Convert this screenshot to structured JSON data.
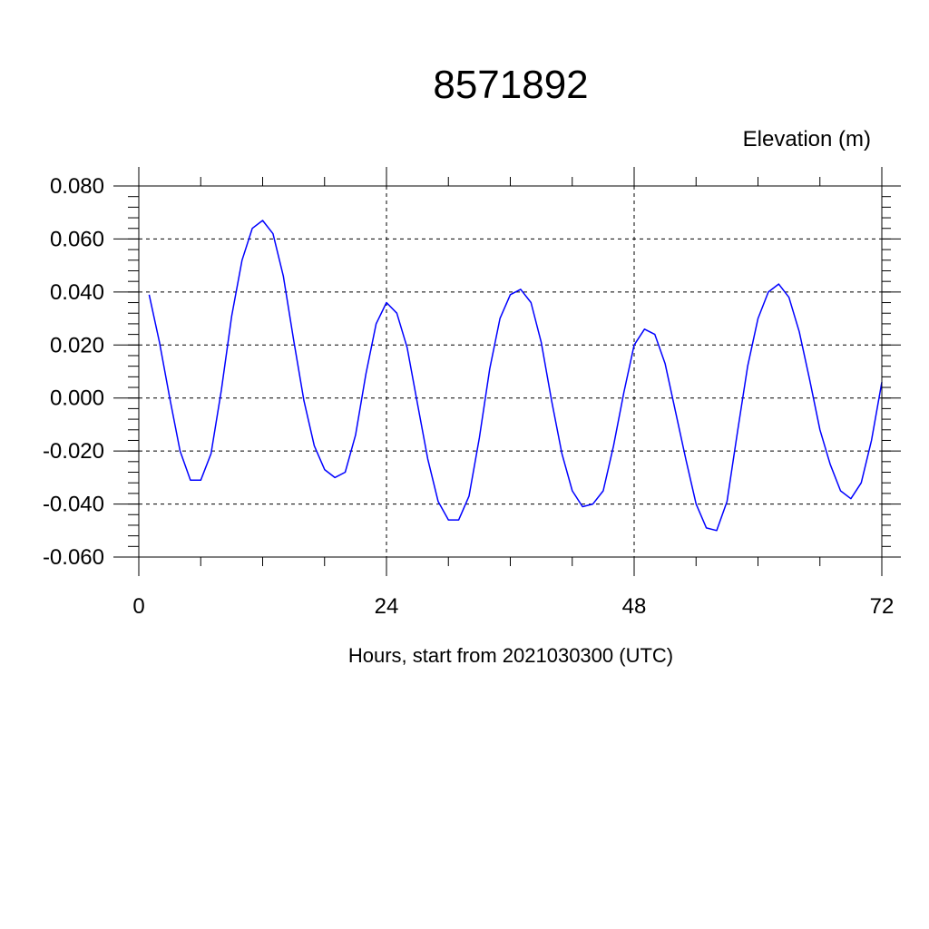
{
  "chart_data": {
    "type": "line",
    "title": "8571892",
    "ylabel": "Elevation (m)",
    "xlabel": "Hours, start from 2021030300 (UTC)",
    "xlim": [
      0,
      72
    ],
    "ylim": [
      -0.06,
      0.08
    ],
    "x_ticks": [
      "0",
      "24",
      "48",
      "72"
    ],
    "x_tick_values": [
      0,
      24,
      48,
      72
    ],
    "y_ticks": [
      "0.080",
      "0.060",
      "0.040",
      "0.020",
      "0.000",
      "-0.020",
      "-0.040",
      "-0.060"
    ],
    "y_tick_values": [
      0.08,
      0.06,
      0.04,
      0.02,
      0.0,
      -0.02,
      -0.04,
      -0.06
    ],
    "grid": true,
    "line_color": "#0000ff",
    "series": [
      {
        "x": [
          1,
          2,
          3,
          4,
          5,
          6,
          7,
          8,
          9,
          10,
          11,
          12,
          13,
          14,
          15,
          16,
          17,
          18,
          19,
          20,
          21,
          22,
          23,
          24,
          25,
          26,
          27,
          28,
          29,
          30,
          31,
          32,
          33,
          34,
          35,
          36,
          37,
          38,
          39,
          40,
          41,
          42,
          43,
          44,
          45,
          46,
          47,
          48,
          49,
          50,
          51,
          52,
          53,
          54,
          55,
          56,
          57,
          58,
          59,
          60,
          61,
          62,
          63,
          64,
          65,
          66,
          67,
          68,
          69,
          70,
          71,
          72
        ],
        "values": [
          0.039,
          0.021,
          0.0,
          -0.02,
          -0.031,
          -0.031,
          -0.021,
          0.003,
          0.031,
          0.052,
          0.064,
          0.067,
          0.062,
          0.046,
          0.022,
          -0.001,
          -0.018,
          -0.027,
          -0.03,
          -0.028,
          -0.014,
          0.009,
          0.028,
          0.036,
          0.032,
          0.019,
          -0.002,
          -0.023,
          -0.039,
          -0.046,
          -0.046,
          -0.037,
          -0.015,
          0.011,
          0.03,
          0.039,
          0.041,
          0.036,
          0.021,
          -0.001,
          -0.021,
          -0.035,
          -0.041,
          -0.04,
          -0.035,
          -0.018,
          0.002,
          0.02,
          0.026,
          0.024,
          0.013,
          -0.005,
          -0.023,
          -0.04,
          -0.049,
          -0.05,
          -0.039,
          -0.013,
          0.012,
          0.03,
          0.04,
          0.043,
          0.038,
          0.025,
          0.007,
          -0.012,
          -0.025,
          -0.035,
          -0.038,
          -0.032,
          -0.016,
          0.006
        ]
      }
    ]
  }
}
